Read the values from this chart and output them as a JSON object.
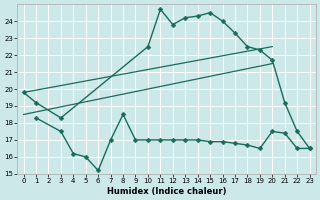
{
  "xlabel": "Humidex (Indice chaleur)",
  "bg_color": "#cce8e8",
  "grid_color": "#ffffff",
  "line_color": "#1a6b5a",
  "xlim": [
    -0.5,
    23.5
  ],
  "ylim": [
    15,
    25.0
  ],
  "x_ticks": [
    0,
    1,
    2,
    3,
    4,
    5,
    6,
    7,
    8,
    9,
    10,
    11,
    12,
    13,
    14,
    15,
    16,
    17,
    18,
    19,
    20,
    21,
    22,
    23
  ],
  "yticks": [
    15,
    16,
    17,
    18,
    19,
    20,
    21,
    22,
    23,
    24
  ],
  "series": [
    {
      "x": [
        0,
        1,
        3,
        10,
        11,
        12,
        13,
        14,
        15,
        16,
        17,
        18,
        19,
        20,
        21,
        22,
        23
      ],
      "y": [
        19.8,
        19.2,
        18.3,
        22.5,
        24.7,
        23.8,
        24.2,
        24.3,
        24.5,
        24.0,
        23.3,
        22.5,
        22.3,
        21.7,
        19.2,
        17.5,
        16.5
      ],
      "has_marker": true,
      "markersize": 2.5,
      "linewidth": 1.0
    },
    {
      "x": [
        0,
        20
      ],
      "y": [
        19.8,
        22.5
      ],
      "has_marker": false,
      "markersize": 0,
      "linewidth": 0.9
    },
    {
      "x": [
        0,
        20
      ],
      "y": [
        18.5,
        21.5
      ],
      "has_marker": false,
      "markersize": 0,
      "linewidth": 0.9
    },
    {
      "x": [
        1,
        3,
        4,
        5,
        6,
        7,
        8,
        9,
        10,
        11,
        12,
        13,
        14,
        15,
        16,
        17,
        18,
        19,
        20,
        21,
        22,
        23
      ],
      "y": [
        18.3,
        17.5,
        16.2,
        16.0,
        15.2,
        17.0,
        18.5,
        17.0,
        17.0,
        17.0,
        17.0,
        17.0,
        17.0,
        16.9,
        16.9,
        16.8,
        16.7,
        16.5,
        17.5,
        17.4,
        16.5,
        16.5
      ],
      "has_marker": true,
      "markersize": 2.5,
      "linewidth": 1.0
    }
  ]
}
